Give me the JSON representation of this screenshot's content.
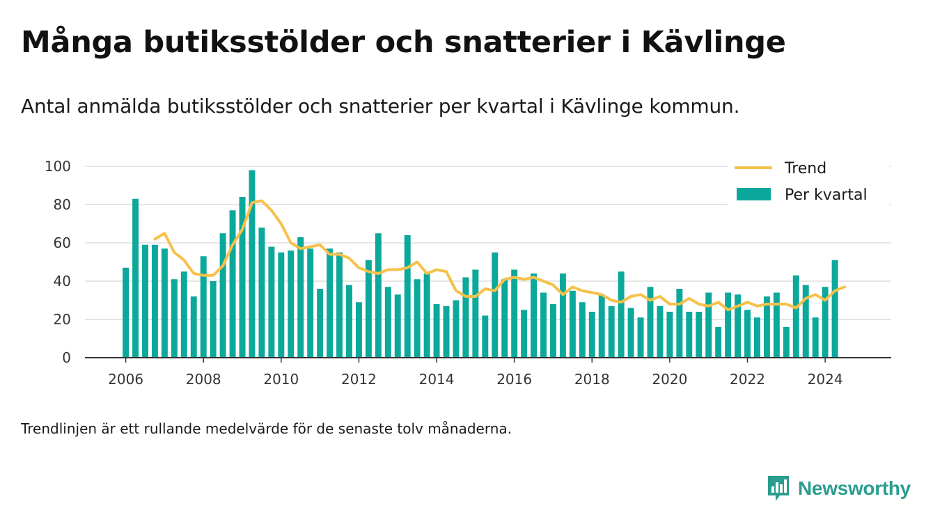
{
  "title": "Många butiksstölder och snatterier i Kävlinge",
  "subtitle": "Antal anmälda butiksstölder och snatterier per kvartal i Kävlinge kommun.",
  "footnote": "Trendlinjen är ett rullande medelvärde för de senaste tolv månaderna.",
  "brand": {
    "name": "Newsworthy",
    "icon": "newsworthy-logo-icon"
  },
  "colors": {
    "bar": "#0ca89b",
    "trend": "#f6c14b",
    "grid": "#dddddd",
    "axis": "#333333",
    "brand": "#2a9d8f"
  },
  "chart_data": {
    "type": "bar",
    "x_start": 2006.0,
    "x_step": 0.25,
    "xlim": [
      2004.95,
      2025.7
    ],
    "ylim": [
      0,
      100
    ],
    "xticks": [
      2006,
      2008,
      2010,
      2012,
      2014,
      2016,
      2018,
      2020,
      2022,
      2024
    ],
    "yticks": [
      0,
      20,
      40,
      60,
      80,
      100
    ],
    "grid": true,
    "legend_position": "top-right",
    "series": [
      {
        "name": "Per kvartal",
        "type": "bar",
        "values": [
          47,
          83,
          59,
          59,
          57,
          41,
          45,
          32,
          53,
          40,
          65,
          77,
          84,
          98,
          68,
          58,
          55,
          56,
          63,
          57,
          36,
          57,
          55,
          38,
          29,
          51,
          65,
          37,
          33,
          64,
          41,
          44,
          28,
          27,
          30,
          42,
          46,
          22,
          55,
          41,
          46,
          25,
          44,
          34,
          28,
          44,
          35,
          29,
          24,
          33,
          27,
          45,
          26,
          21,
          37,
          27,
          24,
          36,
          24,
          24,
          34,
          16,
          34,
          33,
          25,
          21,
          32,
          34,
          16,
          43,
          38,
          21,
          37,
          51
        ]
      },
      {
        "name": "Trend",
        "type": "line",
        "x_start": 2006.75,
        "values": [
          62,
          65,
          55,
          51,
          44,
          43,
          43,
          48,
          59,
          67,
          81,
          82,
          77,
          70,
          60,
          57,
          58,
          59,
          54,
          54,
          52,
          47,
          45,
          44,
          46,
          46,
          47,
          50,
          44,
          46,
          45,
          35,
          32,
          32,
          36,
          35,
          41,
          42,
          41,
          42,
          40,
          38,
          33,
          37,
          35,
          34,
          33,
          30,
          29,
          32,
          33,
          30,
          32,
          28,
          28,
          31,
          28,
          27,
          29,
          25,
          27,
          29,
          27,
          28,
          28,
          28,
          26,
          31,
          33,
          30,
          35,
          37
        ]
      }
    ]
  }
}
